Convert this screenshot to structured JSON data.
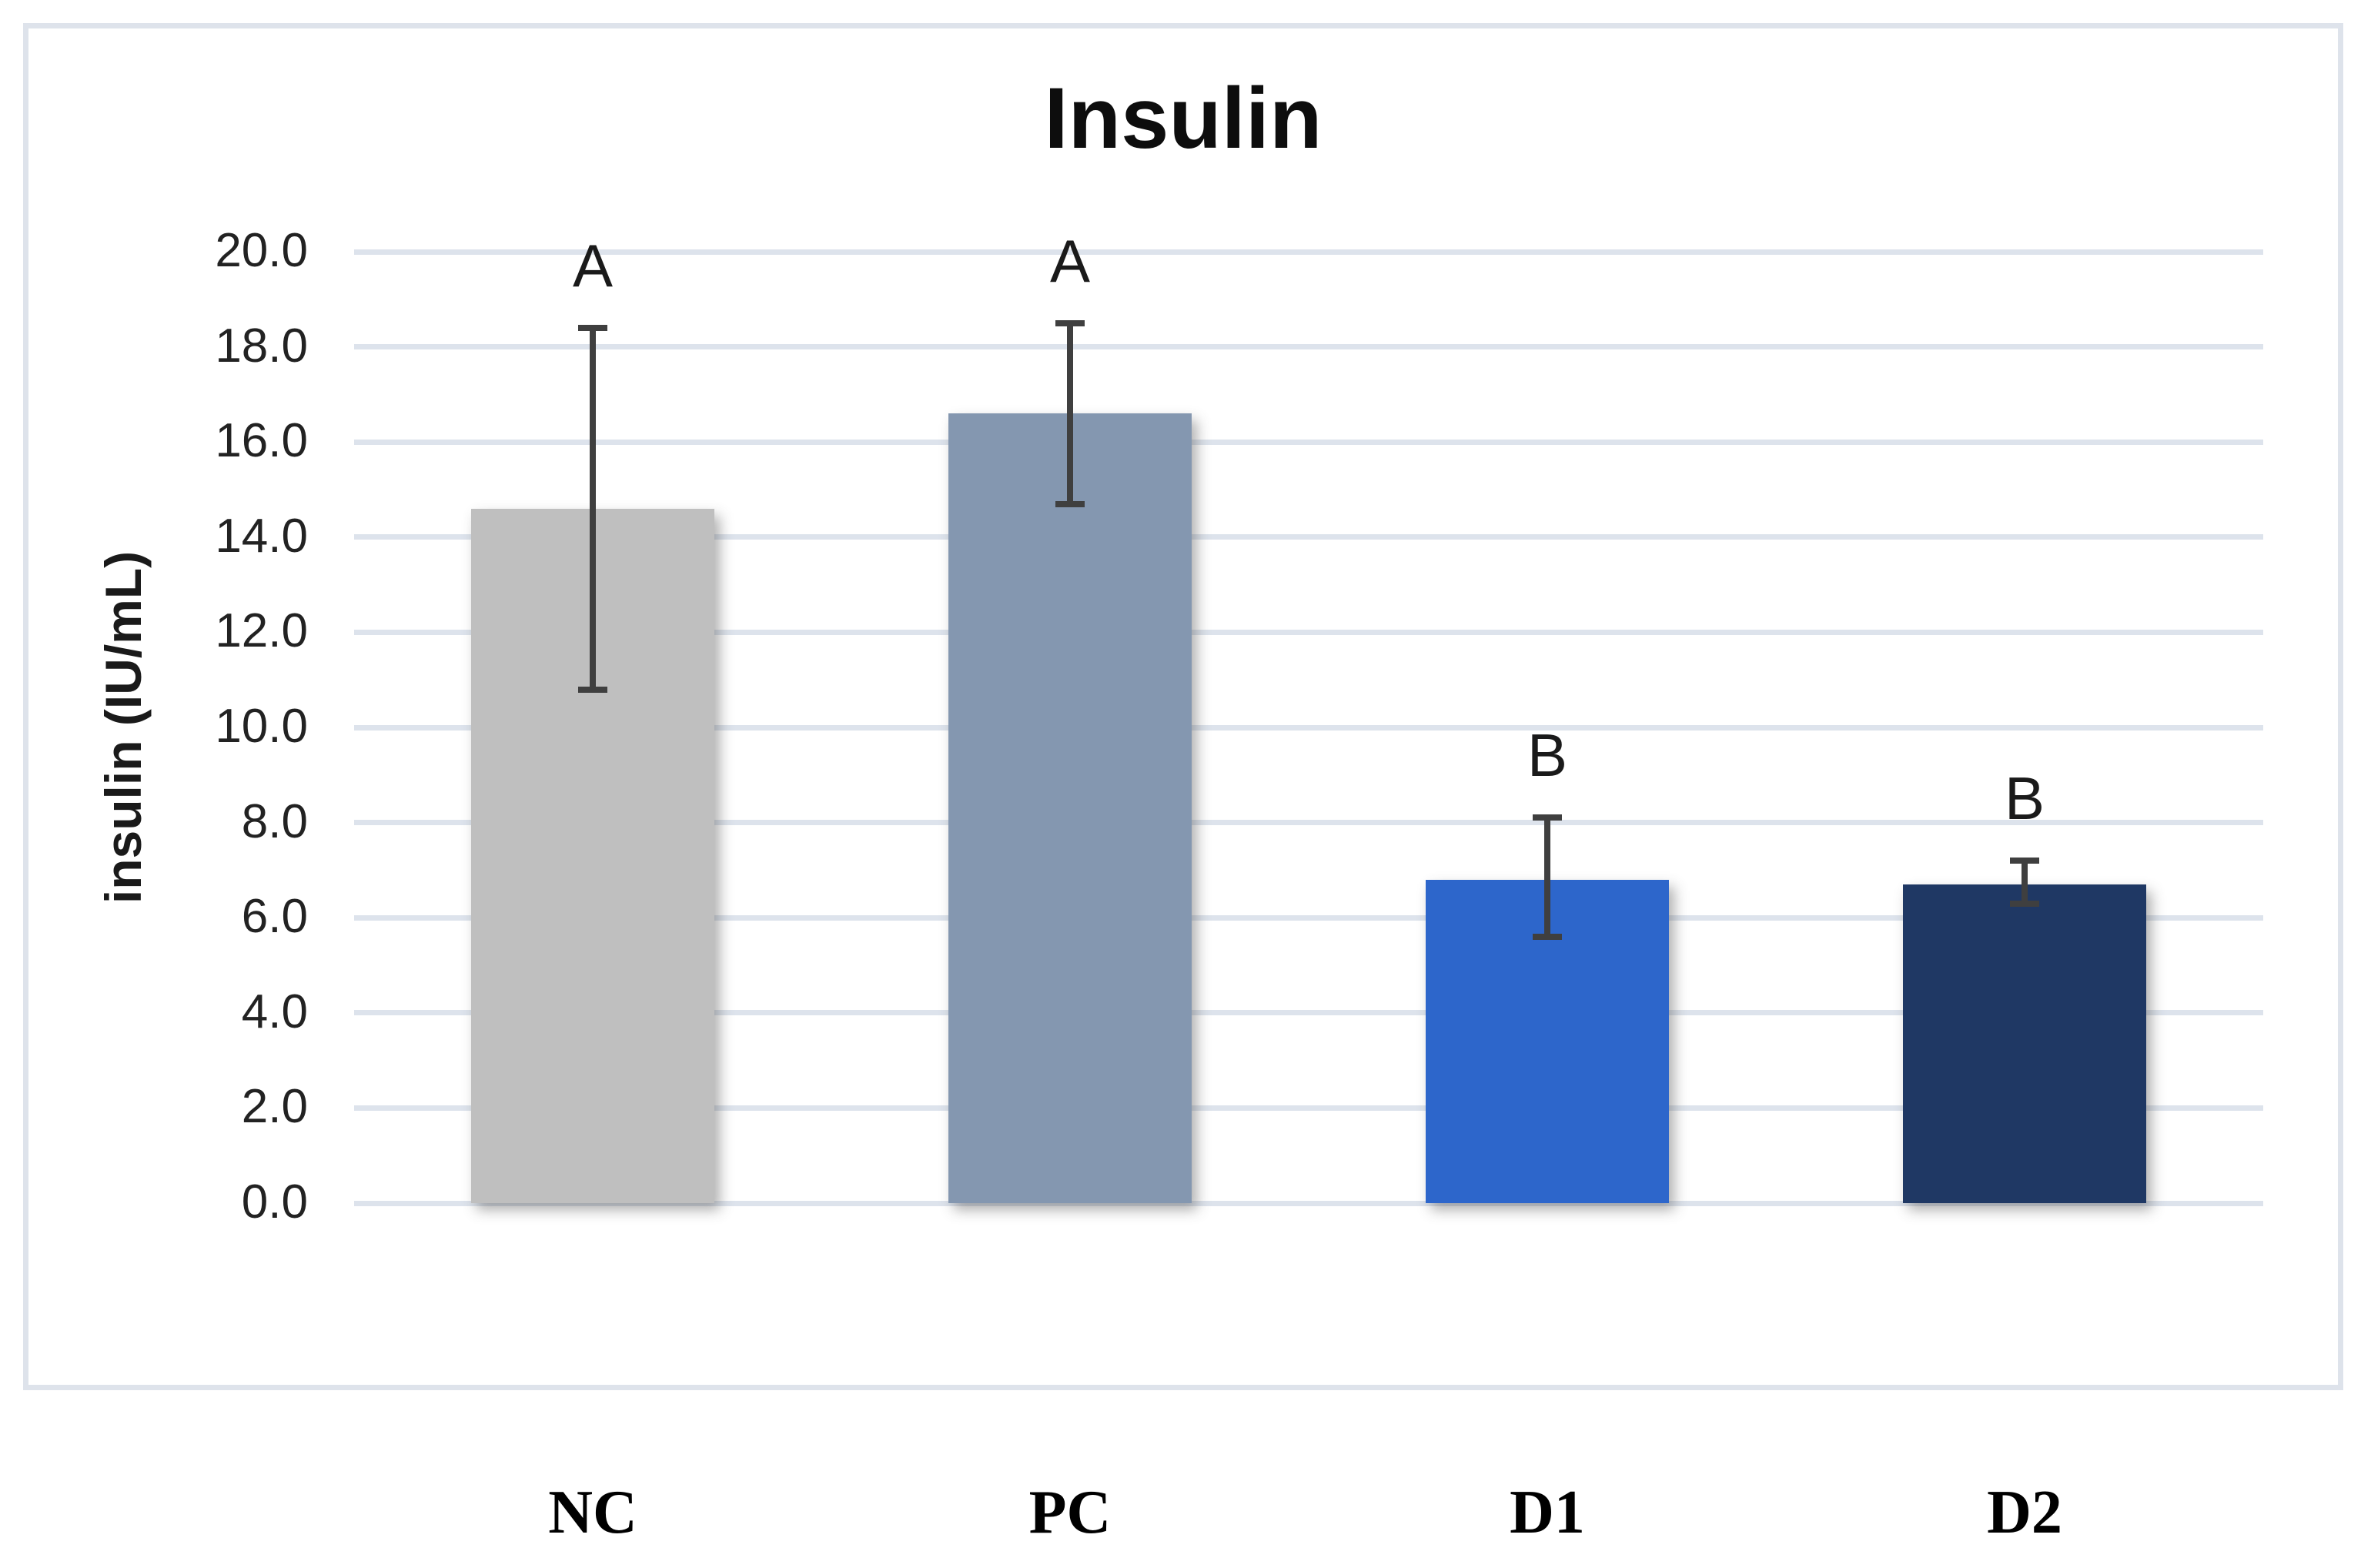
{
  "title": "Insulin",
  "y_axis": {
    "label": "insulin (IU/mL)",
    "tick_labels": [
      "20.0",
      "18.0",
      "16.0",
      "14.0",
      "12.0",
      "10.0",
      "8.0",
      "6.0",
      "4.0",
      "2.0",
      "0.0"
    ]
  },
  "chart_data": {
    "type": "bar",
    "title": "Insulin",
    "xlabel": "",
    "ylabel": "insulin (IU/mL)",
    "ylim": [
      0,
      20
    ],
    "ytick_step": 2.0,
    "ytick_labels": [
      "20.0",
      "18.0",
      "16.0",
      "14.0",
      "12.0",
      "10.0",
      "8.0",
      "6.0",
      "4.0",
      "2.0",
      "0.0"
    ],
    "grid": "horizontal",
    "legend": "none",
    "categories": [
      "NC",
      "PC",
      "D1",
      "D2"
    ],
    "values": [
      14.6,
      16.6,
      6.8,
      6.7
    ],
    "error_low": [
      10.8,
      14.7,
      5.6,
      6.3
    ],
    "error_high": [
      18.4,
      18.5,
      8.1,
      7.2
    ],
    "sig_letters": [
      "A",
      "A",
      "B",
      "B"
    ],
    "bar_colors": [
      "#bfbfbf",
      "#8497b0",
      "#2d66cb",
      "#1f3864"
    ],
    "gridline_color": "#dde3ec",
    "error_bar_color": "#3f3f3f",
    "frame_border_color": "#dee3eb",
    "text_color": "#1a1a1a"
  }
}
